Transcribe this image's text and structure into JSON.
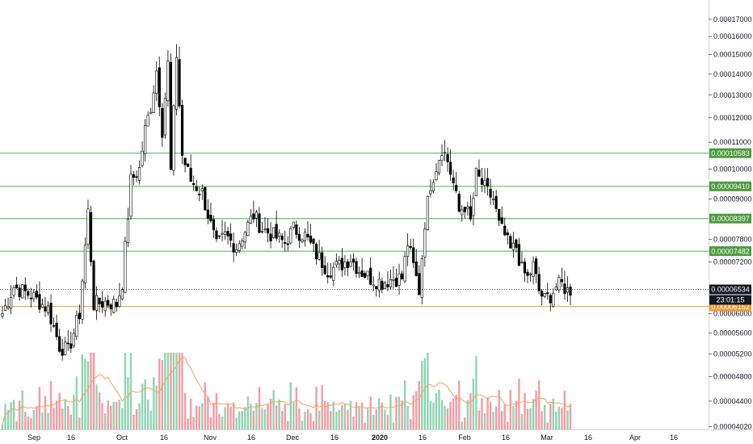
{
  "chart_data": {
    "type": "candlestick",
    "y_axis": {
      "scale": "log",
      "ticks": [
        "0.00017000",
        "0.00016000",
        "0.00015000",
        "0.00014000",
        "0.00013000",
        "0.00012000",
        "0.00011000",
        "0.00010000",
        "0.00009000",
        "0.00007800",
        "0.00007200",
        "0.00006000",
        "0.00005600",
        "0.00005200",
        "0.00004800",
        "0.00004400",
        "0.00004020"
      ],
      "range": [
        3.98e-05,
        0.000182
      ],
      "position": "right"
    },
    "x_axis": {
      "ticks": [
        {
          "label": "Sep",
          "bold": false
        },
        {
          "label": "16",
          "bold": false
        },
        {
          "label": "Oct",
          "bold": false
        },
        {
          "label": "16",
          "bold": false
        },
        {
          "label": "Nov",
          "bold": false
        },
        {
          "label": "16",
          "bold": false
        },
        {
          "label": "Dec",
          "bold": false
        },
        {
          "label": "16",
          "bold": false
        },
        {
          "label": "2020",
          "bold": true
        },
        {
          "label": "16",
          "bold": false
        },
        {
          "label": "Feb",
          "bold": false
        },
        {
          "label": "16",
          "bold": false
        },
        {
          "label": "Mar",
          "bold": false
        },
        {
          "label": "16",
          "bold": false
        },
        {
          "label": "Apr",
          "bold": false
        },
        {
          "label": "16",
          "bold": false
        }
      ]
    },
    "horizontal_levels": [
      {
        "label": "0.00010583",
        "value": 0.00010583,
        "color": "#4caf50",
        "style": "solid"
      },
      {
        "label": "0.00009410",
        "value": 9.41e-05,
        "color": "#4caf50",
        "style": "solid"
      },
      {
        "label": "0.00008397",
        "value": 8.397e-05,
        "color": "#4caf50",
        "style": "solid"
      },
      {
        "label": "0.00007482",
        "value": 7.482e-05,
        "color": "#4caf50",
        "style": "solid"
      },
      {
        "label": "0.00006152",
        "value": 6.152e-05,
        "color": "#f59c34",
        "style": "solid"
      }
    ],
    "last_price": {
      "label": "0.00006534",
      "value": 6.534e-05,
      "countdown": "23:01:15"
    },
    "candle_color_up": "#ffffff",
    "candle_color_down": "#000000",
    "volume_colors": {
      "up": "#8fd4b3",
      "down": "#f29ca4"
    },
    "volume_ma_color": "#f5a35a",
    "anchors": [
      [
        0,
        6e-05
      ],
      [
        4,
        6.6e-05
      ],
      [
        10,
        6.4e-05
      ],
      [
        16,
        6.1e-05
      ],
      [
        20,
        5.35e-05
      ],
      [
        23,
        5.25e-05
      ],
      [
        27,
        6e-05
      ],
      [
        30,
        8.6e-05
      ],
      [
        32,
        6.2e-05
      ],
      [
        36,
        6.25e-05
      ],
      [
        40,
        6.2e-05
      ],
      [
        42,
        6.7e-05
      ],
      [
        45,
        9.6e-05
      ],
      [
        48,
        0.0001
      ],
      [
        50,
        0.000115
      ],
      [
        52,
        0.000125
      ],
      [
        54,
        0.000142
      ],
      [
        56,
        0.000115
      ],
      [
        58,
        0.000145
      ],
      [
        59,
        9.9e-05
      ],
      [
        61,
        0.00015
      ],
      [
        63,
        0.000105
      ],
      [
        66,
        9.6e-05
      ],
      [
        70,
        9.2e-05
      ],
      [
        73,
        8.2e-05
      ],
      [
        75,
        7.6e-05
      ],
      [
        78,
        7.9e-05
      ],
      [
        82,
        7.6e-05
      ],
      [
        86,
        8.2e-05
      ],
      [
        88,
        8.5e-05
      ],
      [
        91,
        8.1e-05
      ],
      [
        95,
        7.9e-05
      ],
      [
        99,
        7.7e-05
      ],
      [
        102,
        8.1e-05
      ],
      [
        106,
        7.9e-05
      ],
      [
        110,
        7.4e-05
      ],
      [
        114,
        7e-05
      ],
      [
        118,
        7.1e-05
      ],
      [
        122,
        7.3e-05
      ],
      [
        125,
        7e-05
      ],
      [
        129,
        6.8e-05
      ],
      [
        133,
        6.7e-05
      ],
      [
        137,
        6.8e-05
      ],
      [
        140,
        6.8e-05
      ],
      [
        142,
        7.7e-05
      ],
      [
        145,
        6.8e-05
      ],
      [
        146,
        6.5e-05
      ],
      [
        148,
        8.3e-05
      ],
      [
        150,
        9.5e-05
      ],
      [
        152,
        0.000101
      ],
      [
        154,
        0.000108
      ],
      [
        156,
        0.000103
      ],
      [
        158,
        9.5e-05
      ],
      [
        160,
        8.6e-05
      ],
      [
        162,
        8.8e-05
      ],
      [
        164,
        8.3e-05
      ],
      [
        166,
        9.8e-05
      ],
      [
        168,
        9.5e-05
      ],
      [
        170,
        9.2e-05
      ],
      [
        172,
        9e-05
      ],
      [
        174,
        8.2e-05
      ],
      [
        176,
        7.9e-05
      ],
      [
        178,
        7.5e-05
      ],
      [
        180,
        7.6e-05
      ],
      [
        182,
        7e-05
      ],
      [
        184,
        6.8e-05
      ],
      [
        186,
        7.1e-05
      ],
      [
        188,
        6.5e-05
      ],
      [
        190,
        6.3e-05
      ],
      [
        192,
        6.4e-05
      ],
      [
        194,
        6.6e-05
      ],
      [
        196,
        6.65e-05
      ],
      [
        198,
        6.5e-05
      ],
      [
        199,
        6.53e-05
      ]
    ],
    "candle_count": 200
  }
}
